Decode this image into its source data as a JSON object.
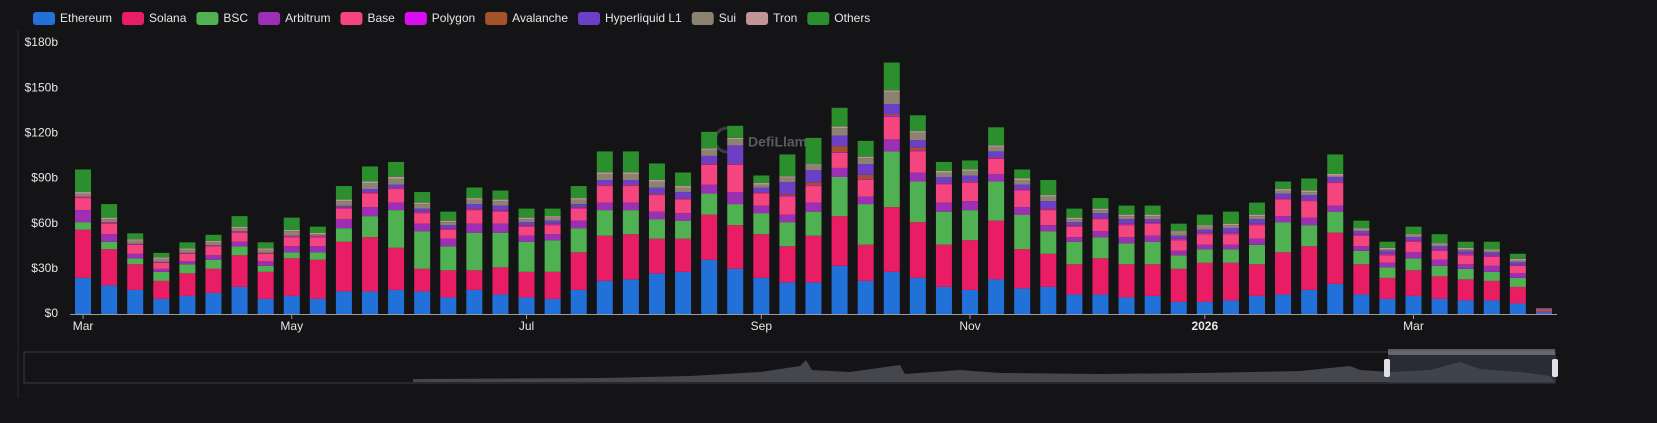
{
  "chart_data": {
    "type": "stacked-bar",
    "watermark": "DefiLlama",
    "categories": [
      "Mar",
      null,
      null,
      null,
      null,
      null,
      null,
      null,
      "May",
      null,
      null,
      null,
      null,
      null,
      null,
      null,
      null,
      "Jul",
      null,
      null,
      null,
      null,
      null,
      null,
      null,
      null,
      "Sep",
      null,
      null,
      null,
      null,
      null,
      null,
      null,
      "Nov",
      null,
      null,
      null,
      null,
      null,
      null,
      null,
      null,
      "2026",
      null,
      null,
      null,
      null,
      null,
      null,
      null,
      "Mar",
      null,
      null,
      null,
      null,
      null
    ],
    "ylim": [
      0,
      180
    ],
    "yticks": [
      {
        "value": 0,
        "label": "$0"
      },
      {
        "value": 30,
        "label": "$30b"
      },
      {
        "value": 60,
        "label": "$60b"
      },
      {
        "value": 90,
        "label": "$90b"
      },
      {
        "value": 120,
        "label": "$120b"
      },
      {
        "value": 150,
        "label": "$150b"
      },
      {
        "value": 180,
        "label": "$180b"
      }
    ],
    "grid": false,
    "series": [
      {
        "name": "Ethereum",
        "color": "#2171d9",
        "values": [
          24,
          19,
          16,
          10,
          12,
          14,
          18,
          10,
          12,
          10,
          15,
          15,
          16,
          15,
          11,
          16,
          13,
          11,
          10,
          16,
          22,
          23,
          27,
          28,
          36,
          30,
          24,
          21,
          21,
          32,
          22,
          28,
          24,
          18,
          16,
          23,
          17,
          18,
          13,
          13,
          11,
          12,
          8,
          8,
          9,
          12,
          13,
          16,
          20,
          13,
          10,
          12,
          10,
          9,
          9,
          7,
          1
        ]
      },
      {
        "name": "Solana",
        "color": "#e81d63",
        "values": [
          32,
          24,
          17,
          12,
          15,
          16,
          21,
          18,
          25,
          26,
          33,
          36,
          28,
          15,
          18,
          13,
          18,
          17,
          18,
          25,
          30,
          30,
          23,
          22,
          30,
          29,
          29,
          24,
          31,
          33,
          24,
          43,
          37,
          28,
          33,
          39,
          26,
          22,
          20,
          24,
          22,
          21,
          22,
          26,
          25,
          21,
          28,
          29,
          34,
          20,
          14,
          17,
          15,
          14,
          13,
          11,
          1
        ]
      },
      {
        "name": "BSC",
        "color": "#4fb152",
        "values": [
          5,
          5,
          4,
          6,
          6,
          6,
          6,
          4,
          4,
          5,
          9,
          14,
          25,
          25,
          16,
          25,
          23,
          20,
          21,
          16,
          17,
          16,
          13,
          12,
          14,
          14,
          14,
          16,
          16,
          26,
          27,
          37,
          27,
          22,
          20,
          26,
          23,
          15,
          15,
          14,
          14,
          15,
          9,
          9,
          9,
          13,
          20,
          14,
          14,
          9,
          7,
          8,
          7,
          7,
          6,
          6,
          0.5
        ]
      },
      {
        "name": "Arbitrum",
        "color": "#9c2fb3",
        "values": [
          8,
          5,
          3,
          2,
          2,
          3,
          3,
          3,
          4,
          4,
          6,
          6,
          5,
          5,
          5,
          6,
          6,
          4,
          4,
          5,
          5,
          5,
          5,
          5,
          6,
          8,
          5,
          5,
          6,
          6,
          5,
          8,
          6,
          6,
          6,
          5,
          5,
          4,
          3,
          4,
          4,
          4,
          3,
          3,
          3,
          4,
          4,
          5,
          4,
          3,
          3,
          4,
          4,
          3,
          4,
          3,
          0.3
        ]
      },
      {
        "name": "Base",
        "color": "#f4457f",
        "values": [
          8,
          7,
          6,
          4,
          5,
          6,
          6,
          5,
          6,
          6,
          7,
          9,
          9,
          7,
          6,
          9,
          8,
          6,
          6,
          8,
          11,
          11,
          11,
          9,
          13,
          18,
          8,
          12,
          11,
          10,
          11,
          15,
          14,
          12,
          12,
          10,
          11,
          10,
          7,
          8,
          8,
          8,
          7,
          7,
          7,
          9,
          11,
          11,
          15,
          7,
          5,
          7,
          6,
          6,
          6,
          5,
          0.5
        ]
      },
      {
        "name": "Polygon",
        "color": "#d90ff2",
        "values": [
          0.5,
          0.5,
          0.3,
          0.3,
          0.3,
          0.3,
          0.5,
          0.3,
          0.5,
          0.5,
          0.5,
          0.5,
          0.5,
          0.5,
          0.5,
          0.5,
          0.5,
          0.5,
          0.5,
          0.5,
          0.5,
          0.5,
          0.5,
          0.5,
          0.5,
          0.5,
          0.5,
          0.5,
          0.5,
          0.5,
          0.5,
          0.5,
          0.5,
          0.5,
          0.5,
          0.5,
          0.5,
          0.5,
          0.5,
          0.5,
          0.5,
          0.5,
          0.5,
          0.5,
          0.5,
          0.5,
          0.5,
          0.5,
          0.5,
          0.5,
          0.5,
          0.5,
          0.5,
          0.5,
          0.5,
          0.3,
          0
        ]
      },
      {
        "name": "Avalanche",
        "color": "#a3522c",
        "values": [
          0.5,
          0.5,
          0.3,
          0.3,
          0.3,
          0.3,
          0.5,
          0.3,
          0.5,
          0.5,
          0.5,
          0.5,
          0.5,
          0.5,
          0.5,
          0.5,
          0.5,
          0.5,
          0.5,
          0.5,
          0.5,
          0.5,
          0.5,
          0.5,
          0.5,
          0.5,
          0.5,
          1,
          2,
          4,
          3,
          1,
          2,
          0.5,
          0.5,
          0.5,
          0.5,
          0.5,
          0.5,
          0.5,
          0.5,
          0.5,
          0.5,
          0.5,
          0.5,
          0.5,
          0.5,
          0.5,
          0.5,
          0.5,
          0.5,
          0.5,
          0.5,
          0.5,
          0.5,
          0.3,
          0
        ]
      },
      {
        "name": "Hyperliquid L1",
        "color": "#6d3fc7",
        "values": [
          0,
          0,
          0,
          0,
          0,
          0,
          0,
          0,
          0,
          0,
          1,
          2,
          2,
          2,
          2,
          3,
          3,
          2,
          2,
          2,
          3,
          3,
          4,
          4,
          5,
          12,
          3,
          8,
          8,
          7,
          7,
          7,
          5,
          4,
          4,
          4,
          3,
          5,
          2,
          3,
          3,
          2,
          2,
          2,
          3,
          3,
          3,
          3,
          3,
          2,
          2,
          2,
          2,
          2,
          2,
          2,
          0.3
        ]
      },
      {
        "name": "Sui",
        "color": "#8c8272",
        "values": [
          2,
          2,
          2,
          2,
          2,
          2,
          2,
          2,
          3,
          1,
          3,
          4,
          4,
          3,
          2,
          3,
          3,
          2,
          2,
          3,
          4,
          4,
          4,
          3,
          4,
          4,
          2,
          3,
          3,
          5,
          4,
          8,
          5,
          3,
          3,
          3,
          3,
          3,
          2,
          2,
          2,
          2,
          2,
          2,
          2,
          2,
          2,
          2,
          1,
          1,
          1,
          1,
          1,
          1,
          1,
          1,
          0
        ]
      },
      {
        "name": "Tron",
        "color": "#c29397",
        "values": [
          1,
          1,
          1,
          1,
          1,
          1,
          1,
          1,
          1,
          1,
          1,
          1,
          1,
          1,
          1,
          1,
          1,
          1,
          1,
          1,
          1,
          1,
          1,
          1,
          1,
          1,
          1,
          1,
          1,
          1,
          1,
          1,
          1,
          1,
          1,
          1,
          1,
          1,
          1,
          1,
          1,
          1,
          1,
          1,
          1,
          1,
          1,
          1,
          1,
          1,
          1,
          1,
          1,
          1,
          1,
          1,
          0
        ]
      },
      {
        "name": "Others",
        "color": "#2b8f2d",
        "values": [
          15,
          9,
          4,
          3,
          4,
          4,
          7,
          4,
          8,
          4,
          9,
          10,
          10,
          7,
          6,
          7,
          6,
          6,
          5,
          8,
          14,
          14,
          11,
          9,
          11,
          8,
          5,
          14.5,
          17.5,
          12.5,
          10.5,
          18.5,
          10.5,
          6,
          6,
          12,
          6,
          10,
          6,
          7,
          6,
          6,
          5,
          7,
          8,
          8,
          5,
          8,
          13,
          5,
          4,
          5,
          6,
          4,
          5,
          3.4,
          0.4
        ]
      }
    ]
  }
}
